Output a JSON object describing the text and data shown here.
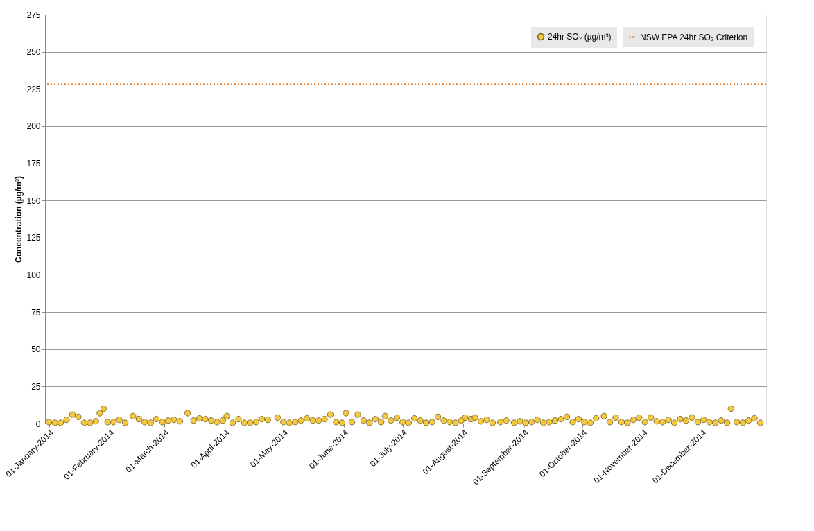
{
  "chart_data": {
    "type": "scatter",
    "ylabel": "Concentration (µg/m³)",
    "x": [
      "2014-01-01",
      "2014-01-04",
      "2014-01-07",
      "2014-01-10",
      "2014-01-13",
      "2014-01-16",
      "2014-01-19",
      "2014-01-22",
      "2014-01-25",
      "2014-01-27",
      "2014-01-29",
      "2014-01-31",
      "2014-02-03",
      "2014-02-06",
      "2014-02-09",
      "2014-02-13",
      "2014-02-16",
      "2014-02-19",
      "2014-02-22",
      "2014-02-25",
      "2014-02-28",
      "2014-03-03",
      "2014-03-06",
      "2014-03-09",
      "2014-03-13",
      "2014-03-16",
      "2014-03-19",
      "2014-03-22",
      "2014-03-25",
      "2014-03-28",
      "2014-03-31",
      "2014-04-02",
      "2014-04-05",
      "2014-04-08",
      "2014-04-11",
      "2014-04-14",
      "2014-04-17",
      "2014-04-20",
      "2014-04-23",
      "2014-04-28",
      "2014-05-01",
      "2014-05-04",
      "2014-05-07",
      "2014-05-10",
      "2014-05-13",
      "2014-05-16",
      "2014-05-19",
      "2014-05-22",
      "2014-05-25",
      "2014-05-28",
      "2014-05-31",
      "2014-06-02",
      "2014-06-05",
      "2014-06-08",
      "2014-06-11",
      "2014-06-14",
      "2014-06-17",
      "2014-06-20",
      "2014-06-22",
      "2014-06-25",
      "2014-06-28",
      "2014-07-01",
      "2014-07-04",
      "2014-07-07",
      "2014-07-10",
      "2014-07-13",
      "2014-07-16",
      "2014-07-19",
      "2014-07-22",
      "2014-07-25",
      "2014-07-28",
      "2014-07-31",
      "2014-08-02",
      "2014-08-05",
      "2014-08-07",
      "2014-08-10",
      "2014-08-13",
      "2014-08-16",
      "2014-08-20",
      "2014-08-23",
      "2014-08-27",
      "2014-08-30",
      "2014-09-02",
      "2014-09-05",
      "2014-09-08",
      "2014-09-11",
      "2014-09-14",
      "2014-09-17",
      "2014-09-20",
      "2014-09-23",
      "2014-09-26",
      "2014-09-29",
      "2014-10-02",
      "2014-10-05",
      "2014-10-08",
      "2014-10-12",
      "2014-10-15",
      "2014-10-18",
      "2014-10-21",
      "2014-10-24",
      "2014-10-27",
      "2014-10-30",
      "2014-11-02",
      "2014-11-05",
      "2014-11-08",
      "2014-11-11",
      "2014-11-14",
      "2014-11-17",
      "2014-11-20",
      "2014-11-23",
      "2014-11-26",
      "2014-11-29",
      "2014-12-02",
      "2014-12-05",
      "2014-12-08",
      "2014-12-11",
      "2014-12-14",
      "2014-12-16",
      "2014-12-19",
      "2014-12-22",
      "2014-12-25",
      "2014-12-28",
      "2014-12-31"
    ],
    "series": [
      {
        "name": "24hr SO₂ (µg/m³)",
        "color": "#f5c842",
        "values": [
          1,
          0.5,
          0.5,
          2.5,
          6,
          4.5,
          0.5,
          0.5,
          1.5,
          7,
          10,
          1,
          1,
          2.5,
          0.5,
          5,
          3,
          1,
          0.5,
          3,
          1,
          2,
          2.5,
          1.5,
          7,
          2,
          3.5,
          3,
          2,
          1,
          2,
          5,
          0.5,
          3,
          0.5,
          0.5,
          1,
          3,
          2.5,
          4,
          1,
          0.5,
          1,
          2,
          3.5,
          2,
          2,
          3,
          6,
          1,
          0.5,
          7,
          1,
          6,
          2,
          0.5,
          3,
          1,
          5,
          2,
          4,
          1,
          0.5,
          3.5,
          2,
          0.5,
          1,
          4.5,
          2,
          1,
          0.5,
          2,
          4,
          3,
          4,
          1.5,
          2.5,
          0.5,
          1,
          2,
          0.5,
          1.5,
          0.5,
          1,
          2.5,
          0.5,
          1,
          2,
          3,
          4.5,
          1,
          3,
          1,
          0.5,
          3.5,
          5,
          1,
          4,
          1,
          0.5,
          2.5,
          4,
          1,
          4,
          1.5,
          1,
          2.5,
          0.5,
          3,
          2,
          4,
          1,
          2.5,
          1,
          0.5,
          2,
          0.5,
          10,
          1,
          0.5,
          2,
          3.5,
          0.5
        ]
      }
    ],
    "ref_lines": [
      {
        "axis": "y",
        "value": 228,
        "label": "NSW EPA 24hr SO₂ Criterion",
        "color": "#e46c0a",
        "line_style": "dotted"
      }
    ],
    "xlim": [
      "2013-12-30",
      "2015-01-03"
    ],
    "xticks": [
      {
        "value": "2014-01-01",
        "label": "01-January-2014"
      },
      {
        "value": "2014-02-01",
        "label": "01-February-2014"
      },
      {
        "value": "2014-03-01",
        "label": "01-March-2014"
      },
      {
        "value": "2014-04-01",
        "label": "01-April-2014"
      },
      {
        "value": "2014-05-01",
        "label": "01-May-2014"
      },
      {
        "value": "2014-06-01",
        "label": "01-June-2014"
      },
      {
        "value": "2014-07-01",
        "label": "01-July-2014"
      },
      {
        "value": "2014-08-01",
        "label": "01-August-2014"
      },
      {
        "value": "2014-09-01",
        "label": "01-September-2014"
      },
      {
        "value": "2014-10-01",
        "label": "01-October-2014"
      },
      {
        "value": "2014-11-01",
        "label": "01-November-2014"
      },
      {
        "value": "2014-12-01",
        "label": "01-December-2014"
      }
    ],
    "ylim": [
      0,
      275
    ],
    "yticks": [
      0,
      25,
      50,
      75,
      100,
      125,
      150,
      175,
      200,
      225,
      250,
      275
    ],
    "grid": "y",
    "legend": "top right",
    "marker": "circle"
  }
}
